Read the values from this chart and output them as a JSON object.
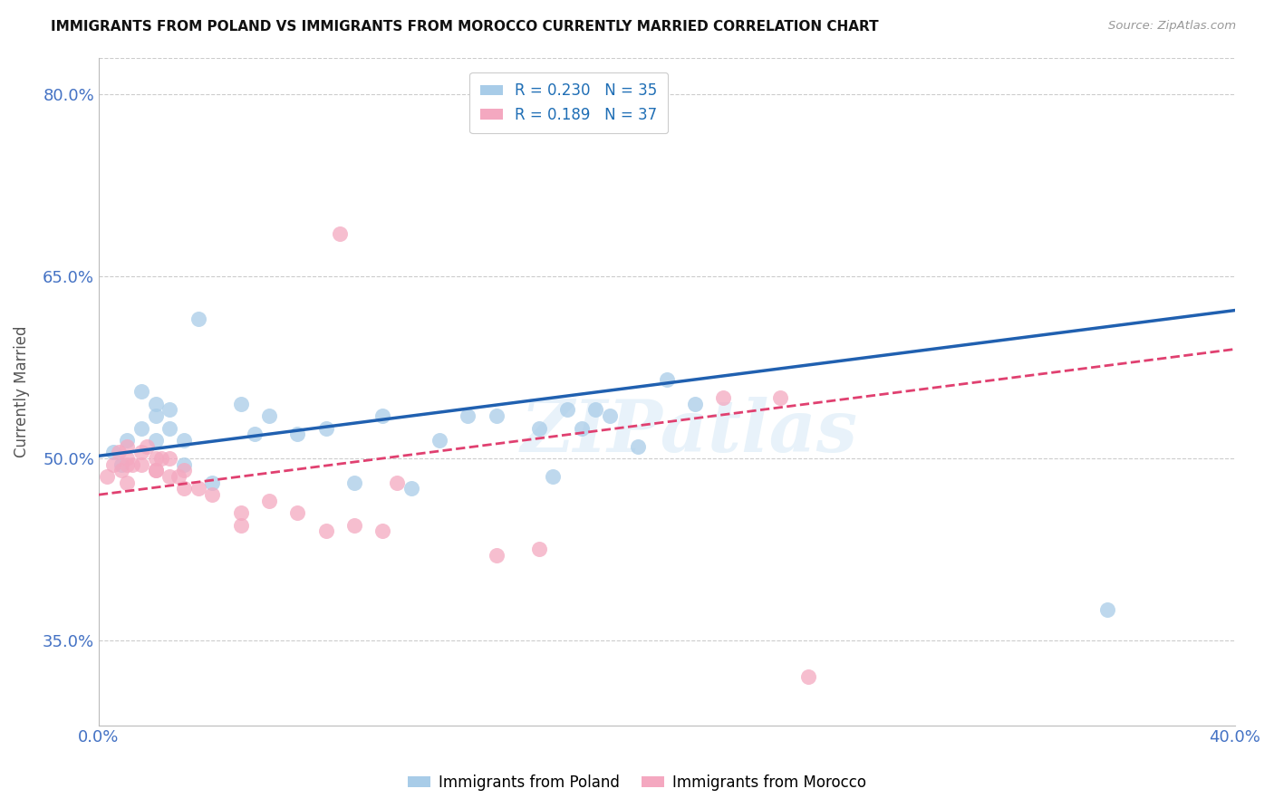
{
  "title": "IMMIGRANTS FROM POLAND VS IMMIGRANTS FROM MOROCCO CURRENTLY MARRIED CORRELATION CHART",
  "source": "Source: ZipAtlas.com",
  "ylabel": "Currently Married",
  "r_poland": 0.23,
  "n_poland": 35,
  "r_morocco": 0.189,
  "n_morocco": 37,
  "xlim": [
    0.0,
    0.4
  ],
  "ylim": [
    0.28,
    0.83
  ],
  "yticks": [
    0.35,
    0.5,
    0.65,
    0.8
  ],
  "ytick_labels": [
    "35.0%",
    "50.0%",
    "65.0%",
    "80.0%"
  ],
  "xticks": [
    0.0,
    0.05,
    0.1,
    0.15,
    0.2,
    0.25,
    0.3,
    0.35,
    0.4
  ],
  "xtick_labels": [
    "0.0%",
    "",
    "",
    "",
    "",
    "",
    "",
    "",
    "40.0%"
  ],
  "poland_color": "#a8cce8",
  "morocco_color": "#f4a8c0",
  "poland_line_color": "#2060b0",
  "morocco_line_color": "#e04070",
  "background_color": "#ffffff",
  "grid_color": "#cccccc",
  "axis_color": "#4472c4",
  "watermark": "ZIPatlas",
  "poland_x": [
    0.005,
    0.008,
    0.01,
    0.015,
    0.015,
    0.02,
    0.02,
    0.02,
    0.025,
    0.025,
    0.03,
    0.03,
    0.035,
    0.04,
    0.05,
    0.055,
    0.06,
    0.07,
    0.08,
    0.09,
    0.1,
    0.11,
    0.12,
    0.13,
    0.14,
    0.155,
    0.16,
    0.165,
    0.17,
    0.175,
    0.18,
    0.19,
    0.2,
    0.21,
    0.355
  ],
  "poland_y": [
    0.505,
    0.495,
    0.515,
    0.555,
    0.525,
    0.545,
    0.535,
    0.515,
    0.54,
    0.525,
    0.515,
    0.495,
    0.615,
    0.48,
    0.545,
    0.52,
    0.535,
    0.52,
    0.525,
    0.48,
    0.535,
    0.475,
    0.515,
    0.535,
    0.535,
    0.525,
    0.485,
    0.54,
    0.525,
    0.54,
    0.535,
    0.51,
    0.565,
    0.545,
    0.375
  ],
  "morocco_x": [
    0.003,
    0.005,
    0.007,
    0.008,
    0.01,
    0.01,
    0.01,
    0.01,
    0.012,
    0.015,
    0.015,
    0.017,
    0.02,
    0.02,
    0.02,
    0.022,
    0.025,
    0.025,
    0.028,
    0.03,
    0.03,
    0.035,
    0.04,
    0.05,
    0.05,
    0.06,
    0.07,
    0.08,
    0.085,
    0.09,
    0.1,
    0.105,
    0.14,
    0.155,
    0.22,
    0.24,
    0.25
  ],
  "morocco_y": [
    0.485,
    0.495,
    0.505,
    0.49,
    0.48,
    0.495,
    0.5,
    0.51,
    0.495,
    0.495,
    0.505,
    0.51,
    0.5,
    0.49,
    0.49,
    0.5,
    0.485,
    0.5,
    0.485,
    0.49,
    0.475,
    0.475,
    0.47,
    0.455,
    0.445,
    0.465,
    0.455,
    0.44,
    0.685,
    0.445,
    0.44,
    0.48,
    0.42,
    0.425,
    0.55,
    0.55,
    0.32
  ]
}
